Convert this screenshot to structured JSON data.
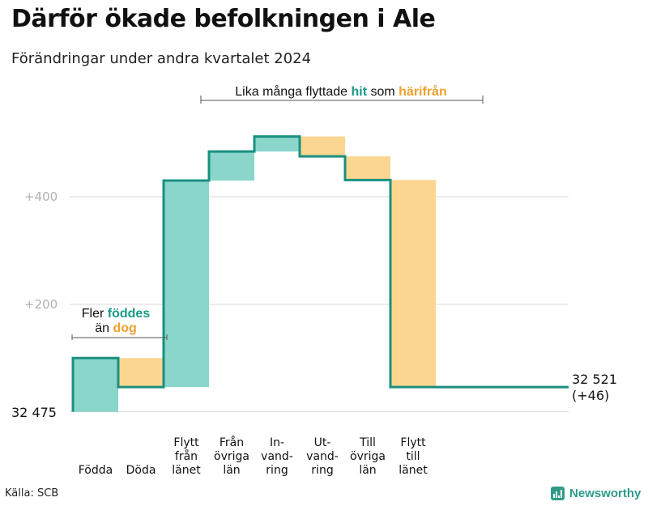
{
  "title": "Därför ökade befolkningen i Ale",
  "subtitle": "Förändringar under andra kvartalet 2024",
  "source": "Källa: SCB",
  "brand": "Newsworthy",
  "colors": {
    "teal": "#8ad6cb",
    "line": "#1a9080",
    "orange": "#fbd690",
    "accent_teal": "#1a9a87",
    "accent_orange": "#f0a030",
    "grid": "#d9d9d9",
    "tick": "#b0b0b0"
  },
  "chart_data": {
    "type": "waterfall",
    "title": "Därför ökade befolkningen i Ale",
    "subtitle": "Förändringar under andra kvartalet 2024",
    "start_value": 32475,
    "start_label": "32  475",
    "end_value": 32521,
    "end_label": "32 521",
    "end_change_label": "(+46)",
    "ylim": [
      -5,
      555
    ],
    "y_ticks": [
      {
        "value": 200,
        "label": "+200"
      },
      {
        "value": 400,
        "label": "+400"
      }
    ],
    "steps": [
      {
        "label_lines": [
          "Födda"
        ],
        "delta": 100,
        "kind": "in"
      },
      {
        "label_lines": [
          "Döda"
        ],
        "delta": -54,
        "kind": "out"
      },
      {
        "label_lines": [
          "Flytt",
          "från",
          "länet"
        ],
        "delta": 384,
        "kind": "in"
      },
      {
        "label_lines": [
          "Från",
          "övriga",
          "län"
        ],
        "delta": 54,
        "kind": "in"
      },
      {
        "label_lines": [
          "In-",
          "vand-",
          "ring"
        ],
        "delta": 28,
        "kind": "in"
      },
      {
        "label_lines": [
          "Ut-",
          "vand-",
          "ring"
        ],
        "delta": -37,
        "kind": "out"
      },
      {
        "label_lines": [
          "Till",
          "övriga",
          "län"
        ],
        "delta": -44,
        "kind": "out"
      },
      {
        "label_lines": [
          "Flytt",
          "till",
          "länet"
        ],
        "delta": -385,
        "kind": "out"
      }
    ],
    "annotations": {
      "births": {
        "line1": "Fler ",
        "line1_hl": "föddes",
        "line2": "än ",
        "line2_hl": "dog"
      },
      "moves": {
        "pre": "Lika många flyttade ",
        "hl1": "hit",
        "mid": " som ",
        "hl2": "härifrån"
      }
    }
  }
}
